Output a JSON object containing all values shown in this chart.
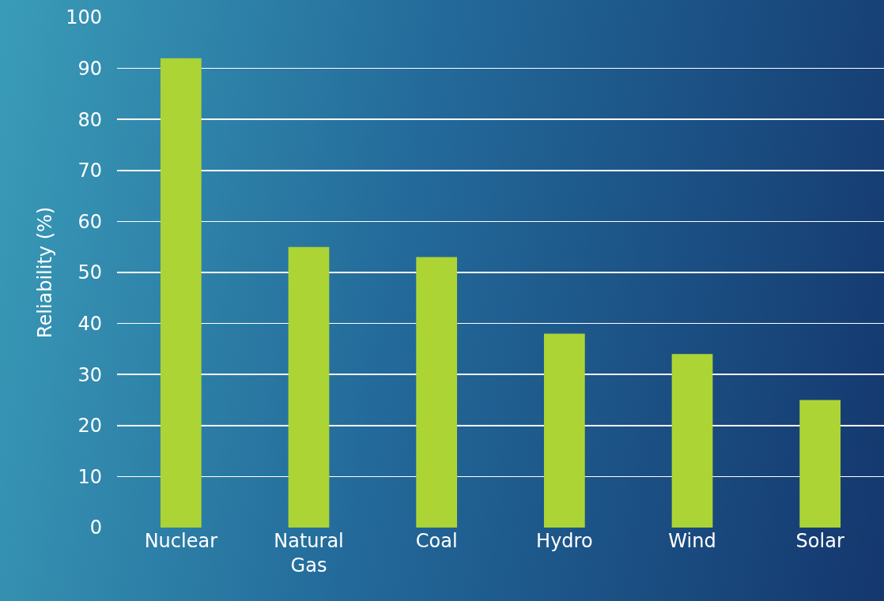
{
  "chart_data": {
    "type": "bar",
    "ylabel": "Reliability (%)",
    "categories": [
      "Nuclear",
      "Natural Gas",
      "Coal",
      "Hydro",
      "Wind",
      "Solar"
    ],
    "values": [
      92,
      55,
      53,
      38,
      34,
      25
    ],
    "color": "#acd435",
    "ylim": [
      0,
      100
    ],
    "yticks": [
      0,
      10,
      20,
      30,
      40,
      50,
      60,
      70,
      80,
      90,
      100
    ],
    "grid": "y"
  }
}
